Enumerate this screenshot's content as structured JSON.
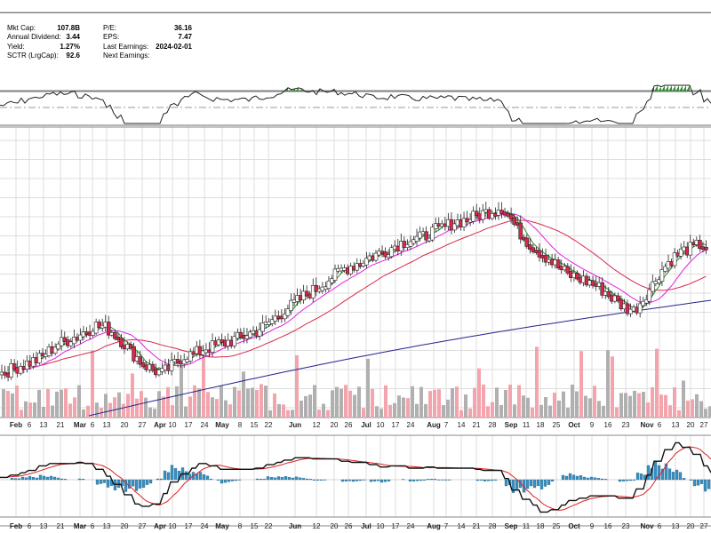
{
  "fundamentals": [
    {
      "label": "Mkt Cap:",
      "value": "107.8B"
    },
    {
      "label": "Annual Dividend:",
      "value": "3.44"
    },
    {
      "label": "Yield:",
      "value": "1.27%"
    },
    {
      "label": "SCTR (LrgCap):",
      "value": "92.6"
    },
    {
      "label": "P/E:",
      "value": "36.16"
    },
    {
      "label": "EPS:",
      "value": "7.47"
    },
    {
      "label": "Last Earnings:",
      "value": "2024-02-01"
    },
    {
      "label": "Next Earnings:",
      "value": ""
    }
  ],
  "colors": {
    "up_candle": "#ffffff",
    "down_candle": "#d5294a",
    "ma_fast": "#2e8b2e",
    "ma_mid": "#e020e0",
    "ma_slow": "#d52a4a",
    "ma_long": "#23238e",
    "volume_up": "#b0b0b0",
    "volume_down": "#f4a4ac",
    "macd_line": "#111111",
    "signal_line": "#e02020",
    "histogram": "#3a8fc0",
    "rsi_line": "#222222",
    "rsi_fill": "#3a8a3a",
    "grid": "#dddddd"
  },
  "chart_data": {
    "type": "candlestick",
    "x_tick_labels": [
      "Feb",
      "6",
      "13",
      "21",
      "Mar",
      "6",
      "13",
      "20",
      "27",
      "Apr",
      "10",
      "17",
      "24",
      "May",
      "8",
      "15",
      "22",
      "Jun",
      "12",
      "20",
      "26",
      "Jul",
      "10",
      "17",
      "24",
      "Aug",
      "7",
      "14",
      "21",
      "28",
      "Sep",
      "11",
      "18",
      "25",
      "Oct",
      "9",
      "16",
      "23",
      "Nov",
      "6",
      "13",
      "20",
      "27"
    ],
    "x_month_labels": [
      "Feb",
      "Mar",
      "Apr",
      "May",
      "Jun",
      "Jul",
      "Aug",
      "Sep",
      "Oct",
      "Nov"
    ],
    "price_close_relative": [
      10,
      12,
      14,
      16,
      18,
      22,
      26,
      28,
      30,
      33,
      36,
      35,
      31,
      26,
      20,
      15,
      12,
      10,
      14,
      18,
      20,
      22,
      24,
      26,
      27,
      29,
      31,
      33,
      36,
      40,
      44,
      48,
      52,
      55,
      58,
      62,
      66,
      68,
      70,
      73,
      75,
      77,
      80,
      82,
      83,
      85,
      88,
      90,
      92,
      93,
      95,
      97,
      98,
      100,
      94,
      86,
      80,
      76,
      72,
      68,
      64,
      62,
      60,
      58,
      54,
      50,
      46,
      44,
      50,
      58,
      66,
      72,
      76,
      78,
      80,
      78
    ],
    "moving_averages": [
      "fast",
      "mid",
      "slow",
      "long"
    ],
    "panels": [
      "RSI",
      "Price",
      "Volume",
      "MACD"
    ]
  }
}
